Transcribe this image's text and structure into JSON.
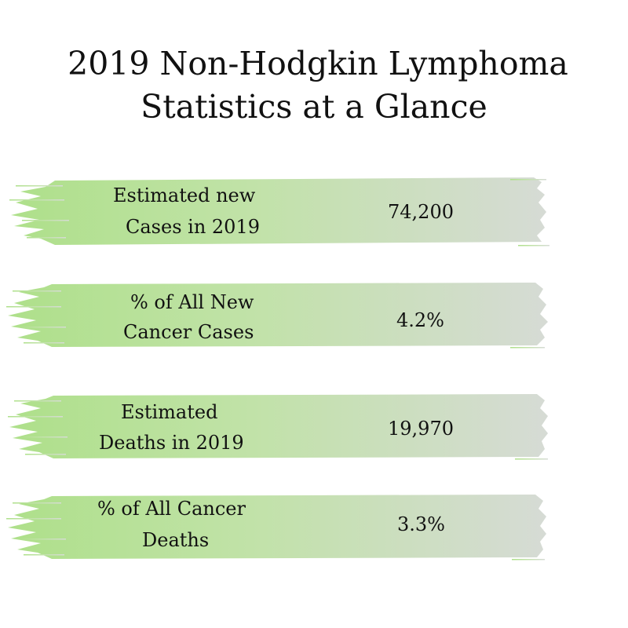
{
  "title": {
    "line1": "2019 Non-Hodgkin Lymphoma",
    "line2": "Statistics at a Glance"
  },
  "stats": [
    {
      "label_line1": "Estimated new",
      "label_line2": "Cases in 2019",
      "value": "74,200"
    },
    {
      "label_line1": "% of All New",
      "label_line2": "Cancer Cases",
      "value": "4.2%"
    },
    {
      "label_line1": "Estimated",
      "label_line2": "Deaths in 2019",
      "value": "19,970"
    },
    {
      "label_line1": "% of All Cancer",
      "label_line2": "Deaths",
      "value": "3.3%"
    }
  ],
  "colors": {
    "brush_start": "#aee08a",
    "brush_mid": "#c6e3b0",
    "brush_end": "#d5dbd3",
    "text": "#111111"
  }
}
